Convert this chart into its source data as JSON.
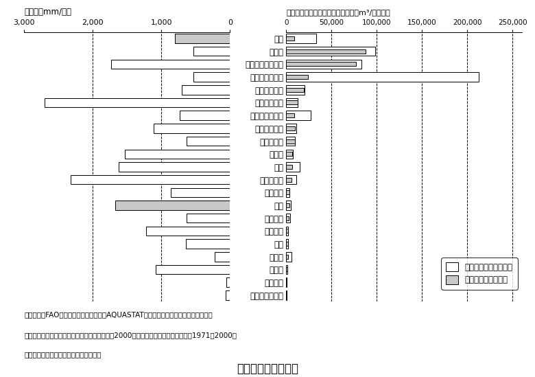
{
  "countries": [
    "世界",
    "カナダ",
    "ニュージーランド",
    "オーストラリア",
    "スウェーデン",
    "インドネシア",
    "アメリカ合衆国",
    "オーストリア",
    "ルーマニア",
    "スイス",
    "タイ",
    "フィリピン",
    "フランス",
    "日本",
    "スペイン",
    "イギリス",
    "中国",
    "イラン",
    "インド",
    "エジプト",
    "サウジアラビア"
  ],
  "precipitation_mm": [
    807,
    537,
    1732,
    534,
    707,
    2702,
    736,
    1110,
    637,
    1537,
    1622,
    2317,
    867,
    1668,
    636,
    1220,
    645,
    228,
    1083,
    51,
    59
  ],
  "precip_gray": [
    true,
    false,
    false,
    false,
    false,
    false,
    false,
    false,
    false,
    false,
    false,
    false,
    false,
    true,
    false,
    false,
    false,
    false,
    false,
    false,
    false
  ],
  "per_capita_rain": [
    33000,
    98000,
    83000,
    213000,
    20000,
    12700,
    26700,
    10900,
    9500,
    7300,
    15200,
    11400,
    3500,
    5000,
    4400,
    2300,
    2100,
    5500,
    1100,
    200,
    200
  ],
  "per_capita_water": [
    8800,
    87500,
    77000,
    24000,
    19700,
    12800,
    8900,
    9900,
    9300,
    6800,
    6600,
    5800,
    3200,
    3300,
    2800,
    2300,
    2200,
    1800,
    1200,
    200,
    100
  ],
  "left_title": "降水量（mm/年）",
  "right_title": "一人当たり年降水総量・水資源量（m³/人・年）",
  "legend_rain_label": "１人当たり年降水総量",
  "legend_water_label": "１人当たり水資源量",
  "note_line1": "（注）１．FAO（国連食糧農業機関）「AQUASTAT」をもとに国土交通省水資源部作成",
  "note_line2": "２．日本の人口は総務省統計局「国勢調査」（2000年），平均降水量と水資源量は1971～2000年",
  "note_line3": "　の平均値で，国土交通省水資源部調べ",
  "main_title": "世界各国の降水量等",
  "gray_color": "#c8c8c8",
  "white_color": "#ffffff",
  "text_color": "#000000"
}
